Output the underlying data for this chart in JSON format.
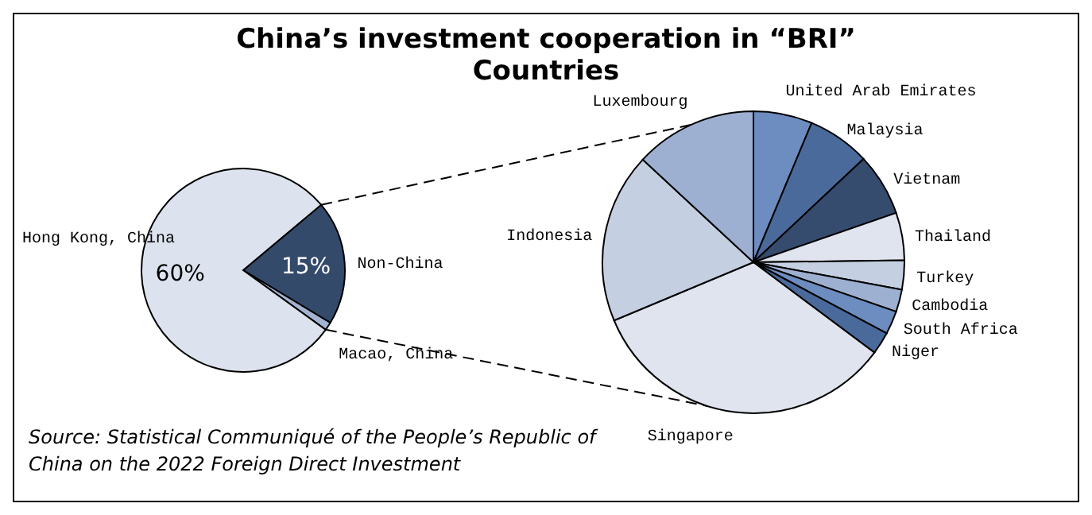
{
  "chart_data": [
    {
      "type": "pie",
      "title": "China’s investment cooperation in “BRI” Countries",
      "categories": [
        "Non-China",
        "Macao, China",
        "Hong Kong, China"
      ],
      "values": [
        15,
        1,
        60
      ],
      "colors": [
        "#344a6b",
        "#a3b3d1",
        "#dde3ee"
      ],
      "value_labels": [
        "15%",
        null,
        "60%"
      ],
      "annotations": [
        "Source: Statistical Communiqué of the People’s Republic of China on the 2022 Foreign Direct Investment"
      ]
    },
    {
      "type": "pie",
      "categories": [
        "United Arab Emirates",
        "Malaysia",
        "Vietnam",
        "Thailand",
        "Turkey",
        "Cambodia",
        "South Africa",
        "Niger",
        "Singapore",
        "Indonesia",
        "Luxembourg"
      ],
      "values": [
        6.3,
        6.7,
        6.7,
        5.1,
        3.1,
        2.4,
        2.5,
        2.4,
        33.5,
        18.2,
        13.1
      ],
      "colors": [
        "#6d8cbf",
        "#4b6a9c",
        "#364c6e",
        "#dfe4ef",
        "#c4cfe1",
        "#9eb0d1",
        "#6d8cbf",
        "#4b6a9c",
        "#dfe4ef",
        "#c4cfe1",
        "#9eb0d1"
      ]
    }
  ]
}
